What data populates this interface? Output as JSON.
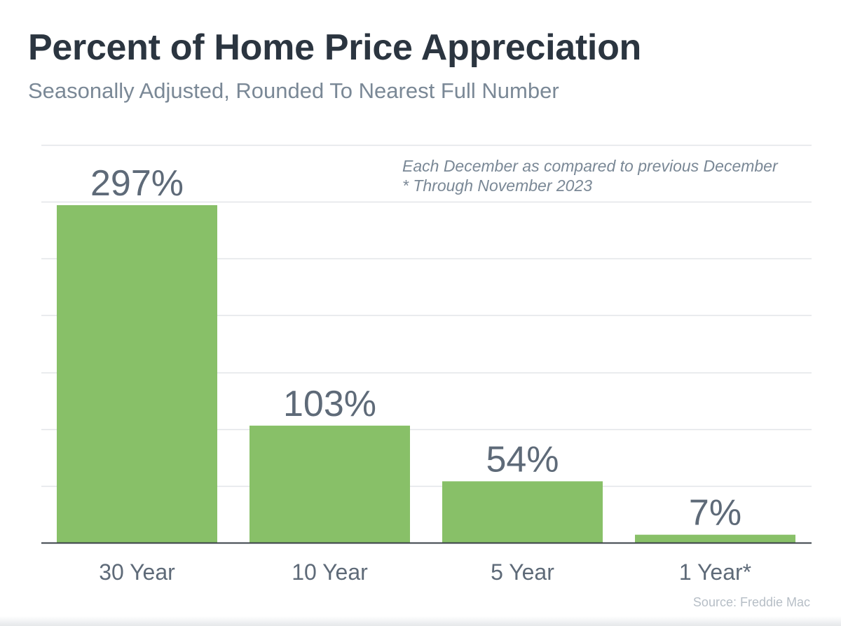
{
  "chart_data": {
    "type": "bar",
    "title": "Percent of Home Price Appreciation",
    "subtitle": "Seasonally Adjusted, Rounded To Nearest Full Number",
    "categories": [
      "30 Year",
      "10 Year",
      "5 Year",
      "1 Year*"
    ],
    "values": [
      297,
      103,
      54,
      7
    ],
    "value_labels": [
      "297%",
      "103%",
      "54%",
      "7%"
    ],
    "xlabel": "",
    "ylabel": "",
    "ylim": [
      0,
      350
    ],
    "grid": true,
    "notes": [
      "Each December as compared to previous December",
      "* Through November 2023"
    ],
    "source": "Source: Freddie Mac",
    "colors": {
      "bar": "#88c068",
      "gridline": "#e2e5e8",
      "axis": "#3a4048"
    }
  }
}
